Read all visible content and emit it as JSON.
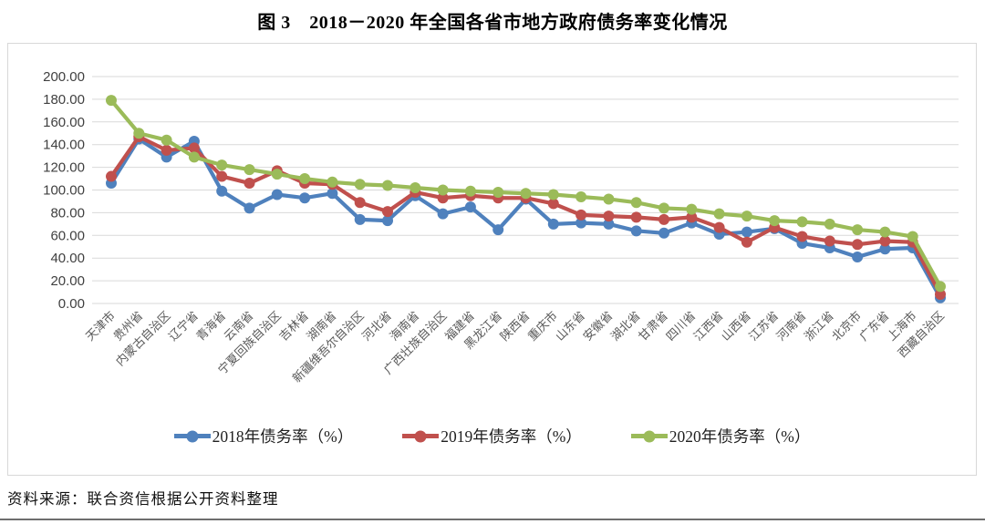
{
  "page": {
    "title": "图 3　2018－2020 年全国各省市地方政府债务率变化情况",
    "source_note": "资料来源：联合资信根据公开资料整理"
  },
  "chart_data": {
    "type": "line",
    "title": "图 3　2018－2020 年全国各省市地方政府债务率变化情况",
    "categories": [
      "天津市",
      "贵州省",
      "内蒙古自治区",
      "辽宁省",
      "青海省",
      "云南省",
      "宁夏回族自治区",
      "吉林省",
      "湖南省",
      "新疆维吾尔自治区",
      "河北省",
      "海南省",
      "广西壮族自治区",
      "福建省",
      "黑龙江省",
      "陕西省",
      "重庆市",
      "山东省",
      "安徽省",
      "湖北省",
      "甘肃省",
      "四川省",
      "江西省",
      "山西省",
      "江苏省",
      "河南省",
      "浙江省",
      "北京市",
      "广东省",
      "上海市",
      "西藏自治区"
    ],
    "series": [
      {
        "name": "2018年债务率（%）",
        "color": "#4F81BD",
        "values": [
          106,
          145,
          129,
          143,
          99,
          84,
          96,
          93,
          97,
          74,
          73,
          95,
          79,
          85,
          65,
          92,
          70,
          71,
          70,
          64,
          62,
          71,
          61,
          63,
          66,
          53,
          49,
          41,
          48,
          49,
          5
        ]
      },
      {
        "name": "2019年债务率（%）",
        "color": "#C0504D",
        "values": [
          112,
          147,
          135,
          137,
          112,
          106,
          117,
          106,
          105,
          89,
          81,
          98,
          93,
          95,
          93,
          93,
          88,
          78,
          77,
          76,
          74,
          76,
          67,
          54,
          67,
          59,
          55,
          52,
          55,
          54,
          8
        ]
      },
      {
        "name": "2020年债务率（%）",
        "color": "#9BBB59",
        "values": [
          179,
          150,
          144,
          129,
          122,
          118,
          114,
          110,
          107,
          105,
          104,
          102,
          100,
          99,
          98,
          97,
          96,
          94,
          92,
          89,
          84,
          83,
          79,
          77,
          73,
          72,
          70,
          65,
          63,
          59,
          15
        ]
      }
    ],
    "ylim": [
      0,
      200
    ],
    "ytick_step": 20,
    "ytick_labels": [
      "200.00",
      "180.00",
      "160.00",
      "140.00",
      "120.00",
      "100.00",
      "80.00",
      "60.00",
      "40.00",
      "20.00",
      "0.00"
    ],
    "xlabel": "",
    "ylabel": "",
    "grid": true,
    "legend_position": "bottom",
    "marker": "circle"
  }
}
